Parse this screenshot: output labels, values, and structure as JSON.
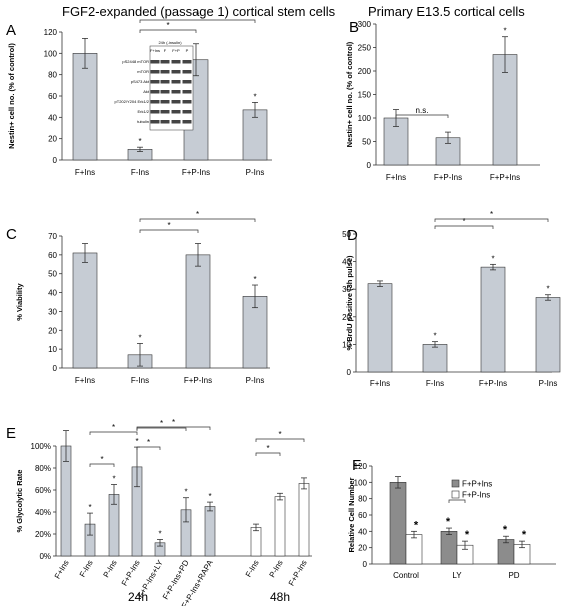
{
  "headers": {
    "left": "FGF2-expanded (passage 1) cortical stem cells",
    "right": "Primary E13.5 cortical cells"
  },
  "colors": {
    "bar": "#c6ccd4",
    "bar_dark": "#8c8c8c",
    "bar_light": "#ffffff",
    "stroke": "#333333"
  },
  "chart_data": [
    {
      "id": "A",
      "type": "bar",
      "panel_label": "A",
      "ylabel": "Nestin+ cell no. (% of control)",
      "ylim": [
        0,
        120
      ],
      "yticks": [
        0,
        20,
        40,
        60,
        80,
        100,
        120
      ],
      "categories": [
        "F+Ins",
        "F-Ins",
        "F+P-Ins",
        "P-Ins"
      ],
      "values": [
        100,
        10,
        94,
        47
      ],
      "errors": [
        14,
        2,
        15,
        7
      ],
      "stars": [
        "",
        "*",
        "",
        "*"
      ],
      "brackets": [
        {
          "from": 1,
          "to": 2,
          "label": "*"
        },
        {
          "from": 1,
          "to": 3,
          "label": "*"
        }
      ],
      "inset": {
        "title": "24h (-insulin)",
        "lanes": [
          "F+Ins",
          "F",
          "F+P",
          "P"
        ],
        "rows": [
          "pS2448 mTOR",
          "mTOR",
          "pS473 Akt",
          "Akt",
          "pT202/Y204 Erk1/2",
          "Erk1/2",
          "tubulin"
        ]
      }
    },
    {
      "id": "B",
      "type": "bar",
      "panel_label": "B",
      "ylabel": "Nestin+ cell no. (% of control)",
      "ylim": [
        0,
        300
      ],
      "yticks": [
        0,
        50,
        100,
        150,
        200,
        250,
        300
      ],
      "categories": [
        "F+Ins",
        "F+P-Ins",
        "F+P+Ins"
      ],
      "values": [
        100,
        58,
        235
      ],
      "errors": [
        18,
        12,
        38
      ],
      "stars": [
        "",
        "",
        "*"
      ],
      "brackets": [
        {
          "from": 0,
          "to": 1,
          "label": "n.s."
        }
      ]
    },
    {
      "id": "C",
      "type": "bar",
      "panel_label": "C",
      "ylabel": "% Viability",
      "ylim": [
        0,
        70
      ],
      "yticks": [
        0,
        10,
        20,
        30,
        40,
        50,
        60,
        70
      ],
      "categories": [
        "F+Ins",
        "F-Ins",
        "F+P-Ins",
        "P-Ins"
      ],
      "values": [
        61,
        7,
        60,
        38
      ],
      "errors": [
        5,
        6,
        6,
        6
      ],
      "stars": [
        "",
        "*",
        "",
        "*"
      ],
      "brackets": [
        {
          "from": 1,
          "to": 2,
          "label": "*"
        },
        {
          "from": 1,
          "to": 3,
          "label": "*"
        }
      ]
    },
    {
      "id": "D",
      "type": "bar",
      "panel_label": "D",
      "ylabel": "% BrdU positive (3h pulse)",
      "ylim": [
        0,
        50
      ],
      "yticks": [
        0,
        10,
        20,
        30,
        40,
        50
      ],
      "categories": [
        "F+Ins",
        "F-Ins",
        "F+P-Ins",
        "P-Ins"
      ],
      "values": [
        32,
        10,
        38,
        27
      ],
      "errors": [
        1,
        1,
        1,
        1
      ],
      "stars": [
        "",
        "*",
        "*",
        "*"
      ],
      "brackets": [
        {
          "from": 1,
          "to": 2,
          "label": "*"
        },
        {
          "from": 1,
          "to": 3,
          "label": "*"
        }
      ]
    },
    {
      "id": "E",
      "type": "bar",
      "panel_label": "E",
      "ylabel": "% Glycolytic Rate",
      "ylim": [
        0,
        100
      ],
      "yticks": [
        0,
        20,
        40,
        60,
        80,
        100
      ],
      "ytick_suffix": "%",
      "categories": [
        "F+Ins",
        "F-Ins",
        "P-Ins",
        "F+P-Ins",
        "F+P-Ins+LY",
        "F+P-Ins+PD",
        "F+P-Ins+RAPA",
        "F-Ins",
        "P-Ins",
        "F+P-Ins"
      ],
      "values": [
        100,
        29,
        56,
        81,
        12,
        42,
        45,
        26,
        54,
        66
      ],
      "errors": [
        14,
        10,
        9,
        18,
        3,
        11,
        4,
        3,
        3,
        5
      ],
      "stars": [
        "",
        "*",
        "*",
        "*",
        "*",
        "*",
        "*",
        "",
        "",
        ""
      ],
      "bar_styles": [
        "grey",
        "grey",
        "grey",
        "grey",
        "grey",
        "grey",
        "grey",
        "white",
        "white",
        "white"
      ],
      "brackets": [
        {
          "from": 1,
          "to": 2,
          "label": "*"
        },
        {
          "from": 1,
          "to": 3,
          "label": "*"
        },
        {
          "from": 3,
          "to": 4,
          "label": "*"
        },
        {
          "from": 3,
          "to": 5,
          "label": "*"
        },
        {
          "from": 3,
          "to": 6,
          "label": "*"
        },
        {
          "from": 7,
          "to": 8,
          "label": "*"
        },
        {
          "from": 7,
          "to": 9,
          "label": "*"
        }
      ],
      "groups": [
        {
          "label": "24h",
          "from": 0,
          "to": 6
        },
        {
          "label": "48h",
          "from": 7,
          "to": 9
        }
      ]
    },
    {
      "id": "F",
      "type": "bar",
      "panel_label": "F",
      "ylabel": "Relative Cell Number",
      "ylim": [
        0,
        120
      ],
      "yticks": [
        0,
        20,
        40,
        60,
        80,
        100,
        120
      ],
      "categories": [
        "Control",
        "LY",
        "PD"
      ],
      "series": [
        {
          "name": "F+P+Ins",
          "values": [
            100,
            40,
            30
          ],
          "errors": [
            7,
            4,
            4
          ],
          "stars": [
            "",
            "*",
            "*"
          ]
        },
        {
          "name": "F+P-Ins",
          "values": [
            36,
            23,
            24
          ],
          "errors": [
            4,
            5,
            4
          ],
          "stars": [
            "*",
            "*",
            "*"
          ]
        }
      ],
      "series_colors": [
        "grey_dark",
        "white"
      ],
      "legend": "top-right",
      "brackets": [
        {
          "cat": 1,
          "label": "*"
        }
      ]
    }
  ]
}
